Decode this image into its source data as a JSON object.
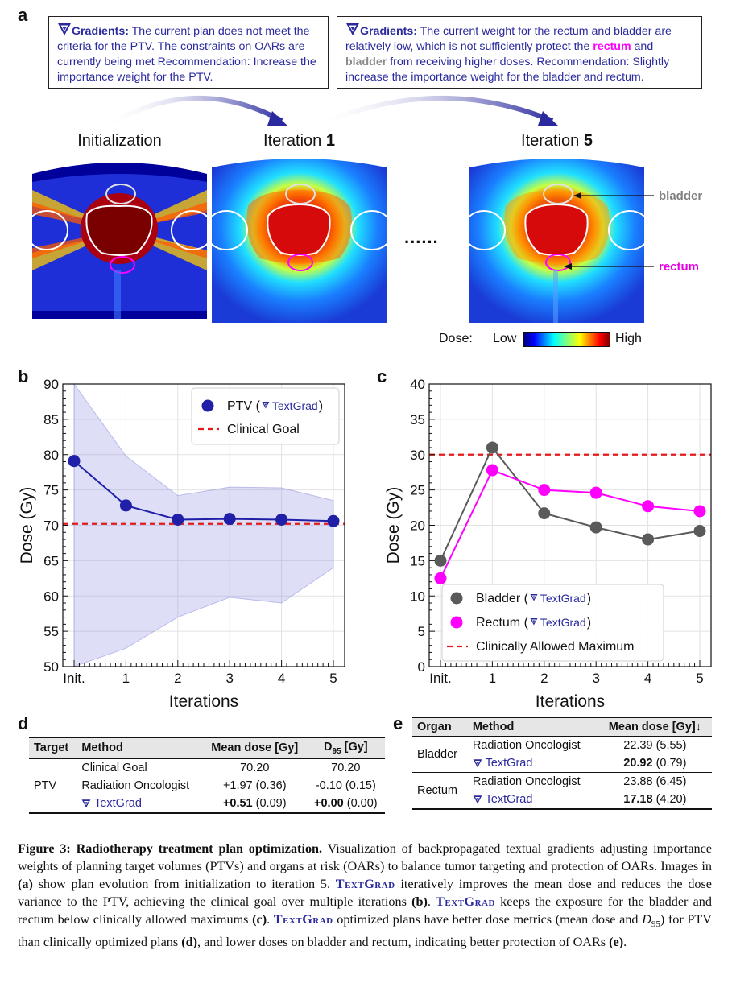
{
  "panel_labels": {
    "a": "a",
    "b": "b",
    "c": "c",
    "d": "d",
    "e": "e"
  },
  "gradient_box_1": {
    "heading": "Gradients:",
    "body": " The current plan does not meet the criteria for the PTV.  The constraints on OARs are currently being met Recommendation: Increase the importance weight for the PTV."
  },
  "gradient_box_2": {
    "heading": "Gradients:",
    "part1": " The current weight for the rectum and bladder are relatively low, which is not sufficiently protect the ",
    "rectum_word": "rectum",
    "part2": " and ",
    "bladder_word": "bladder",
    "part3": " from receiving higher doses. Recommendation: Slightly increase the importance weight for the bladder and rectum."
  },
  "image_titles": {
    "init": "Initialization",
    "iter1_prefix": "Iteration ",
    "iter1_num": "1",
    "iter5_prefix": "Iteration ",
    "iter5_num": "5"
  },
  "ellipsis": "......",
  "organ_labels": {
    "bladder": "bladder",
    "rectum": "rectum"
  },
  "colorbar": {
    "label": "Dose:",
    "low": "Low",
    "high": "High"
  },
  "colors": {
    "accent": "#2a2a9e",
    "ptv": "#1f1fa8",
    "bladder": "#5a5a5a",
    "rectum": "#ff00ff",
    "goal": "#e31a1c",
    "rectum_label": "#e600e6",
    "bladder_label": "#808080"
  },
  "chart_data": [
    {
      "type": "line",
      "panel": "b",
      "ylabel": "Dose (Gy)",
      "xlabel": "Iterations",
      "categories": [
        "Init.",
        "1",
        "2",
        "3",
        "4",
        "5"
      ],
      "ylim": [
        50,
        90
      ],
      "yticks": [
        "50",
        "55",
        "60",
        "65",
        "70",
        "75",
        "80",
        "85",
        "90"
      ],
      "series": [
        {
          "name": "PTV (",
          "tool": "TextGrad",
          "close": ")",
          "values": [
            79.1,
            72.8,
            70.8,
            70.9,
            70.8,
            70.6
          ],
          "band_upper": [
            90,
            79.8,
            74.2,
            75.4,
            75.3,
            73.5
          ],
          "band_lower": [
            50,
            52.6,
            57.0,
            59.8,
            59.0,
            64.0
          ]
        }
      ],
      "reference_line": {
        "name": "Clinical Goal",
        "value": 70.2
      },
      "legend": "top-right",
      "grid": true
    },
    {
      "type": "line",
      "panel": "c",
      "ylabel": "Dose (Gy)",
      "xlabel": "Iterations",
      "categories": [
        "Init.",
        "1",
        "2",
        "3",
        "4",
        "5"
      ],
      "ylim": [
        0,
        40
      ],
      "yticks": [
        "0",
        "5",
        "10",
        "15",
        "20",
        "25",
        "30",
        "35",
        "40"
      ],
      "series": [
        {
          "name": "Bladder (",
          "tool": "TextGrad",
          "close": ")",
          "values": [
            15.0,
            31.0,
            21.7,
            19.7,
            18.0,
            19.2
          ]
        },
        {
          "name": "Rectum (",
          "tool": "TextGrad",
          "close": ")",
          "values": [
            12.5,
            27.8,
            25.0,
            24.6,
            22.7,
            22.0
          ]
        }
      ],
      "reference_line": {
        "name": "Clinically Allowed Maximum",
        "value": 30
      },
      "legend": "bottom-right",
      "grid": true
    }
  ],
  "table_d": {
    "headers": [
      "Target",
      "Method",
      "Mean dose [Gy]",
      "D",
      "95",
      " [Gy]"
    ],
    "target": "PTV",
    "rows": [
      {
        "method": "Clinical Goal",
        "mean": "70.20",
        "mean_sd": "",
        "d95": "70.20",
        "d95_sd": ""
      },
      {
        "method": "Radiation Oncologist",
        "mean": "+1.97",
        "mean_sd": " (0.36)",
        "d95": "-0.10",
        "d95_sd": " (0.15)"
      },
      {
        "method": "TextGrad",
        "mean": "+0.51",
        "mean_sd": " (0.09)",
        "d95": "+0.00",
        "d95_sd": " (0.00)"
      }
    ]
  },
  "table_e": {
    "headers": [
      "Organ",
      "Method",
      "Mean dose [Gy]↓"
    ],
    "groups": [
      {
        "organ": "Bladder",
        "rows": [
          {
            "method": "Radiation Oncologist",
            "mean": "22.39",
            "sd": " (5.55)"
          },
          {
            "method": "TextGrad",
            "mean": "20.92",
            "sd": " (0.79)"
          }
        ]
      },
      {
        "organ": "Rectum",
        "rows": [
          {
            "method": "Radiation Oncologist",
            "mean": "23.88",
            "sd": " (6.45)"
          },
          {
            "method": "TextGrad",
            "mean": "17.18",
            "sd": " (4.20)"
          }
        ]
      }
    ]
  },
  "caption": {
    "label": "Figure 3: Radiotherapy treatment plan optimization.",
    "t1": " Visualization of backpropagated textual gradients adjusting importance weights of planning target volumes (PTVs) and organs at risk (OARs) to balance tumor targeting and protection of OARs. Images in ",
    "a": "(a)",
    "t2": " show plan evolution from initialization to iteration 5. ",
    "tg": "TextGrad",
    "t3": " iteratively improves the mean dose and reduces the dose variance to the PTV, achieving the clinical goal over multiple iterations ",
    "b": "(b)",
    "t4": ". ",
    "t5": " keeps the exposure for the bladder and rectum below clinically allowed maximums ",
    "c": "(c)",
    "t6": ". ",
    "t7": " optimized plans have better dose metrics (mean dose and ",
    "d95": "D",
    "d95sub": "95",
    "t8": ") for PTV than clinically optimized plans ",
    "d": "(d)",
    "t9": ", and lower doses on bladder and rectum, indicating better protection of OARs ",
    "e": "(e)",
    "t10": "."
  }
}
